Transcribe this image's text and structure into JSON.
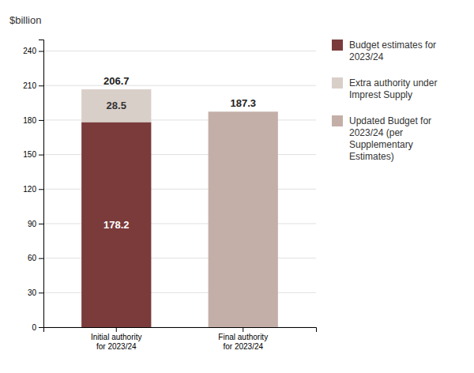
{
  "chart_data": {
    "type": "bar",
    "stacked": true,
    "data_labels": true,
    "grid": true,
    "ylabel": "$billion",
    "categories": [
      "Initial authority\nfor 2023/24",
      "Final authority\nfor 2023/24"
    ],
    "series": [
      {
        "name": "Budget estimates for\n2023/24",
        "color": "#7B3B3B",
        "values": [
          178.2,
          null
        ]
      },
      {
        "name": "Extra authority under\nImprest Supply",
        "color": "#D9CFC9",
        "values": [
          28.5,
          null
        ]
      },
      {
        "name": "Updated Budget for\n2023/24 (per\nSupplementary\nEstimates)",
        "color": "#C4AFA8",
        "values": [
          null,
          187.3
        ]
      }
    ],
    "totals": [
      206.7,
      null
    ],
    "ylim": [
      0,
      250
    ],
    "yticks": [
      0,
      30,
      60,
      90,
      120,
      150,
      180,
      210,
      240
    ]
  }
}
